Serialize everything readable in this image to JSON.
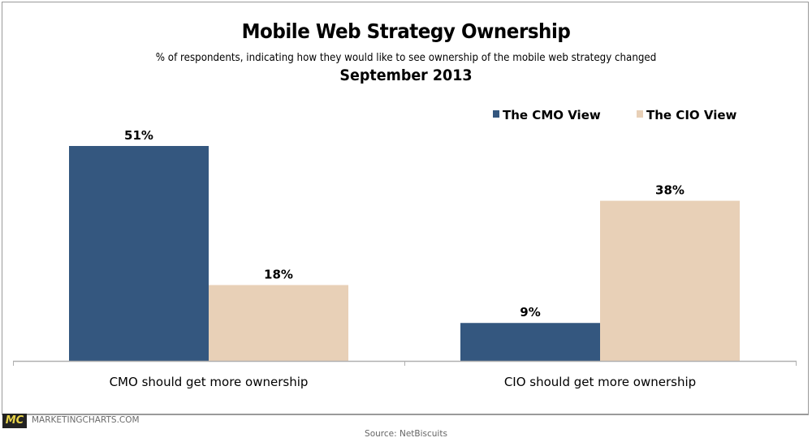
{
  "chart_data": {
    "type": "bar",
    "title": "Mobile Web Strategy Ownership",
    "subtitle": "% of respondents, indicating how they would like to see ownership of the mobile web strategy changed",
    "date": "September 2013",
    "xlabel": "",
    "ylabel": "",
    "ylim": [
      0,
      51
    ],
    "grid": false,
    "legend_position": "top-right",
    "categories": [
      "CMO should get more ownership",
      "CIO should get more ownership"
    ],
    "series": [
      {
        "name": "The CMO View",
        "color": "#34577f",
        "values": [
          51,
          9
        ],
        "labels": [
          "51%",
          "9%"
        ]
      },
      {
        "name": "The CIO View",
        "color": "#e8d0b7",
        "values": [
          18,
          38
        ],
        "labels": [
          "18%",
          "38%"
        ]
      }
    ]
  },
  "branding": {
    "logo_mark": "MC",
    "logo_text": "MARKETINGCHARTS.COM"
  },
  "source": "Source: NetBiscuits"
}
